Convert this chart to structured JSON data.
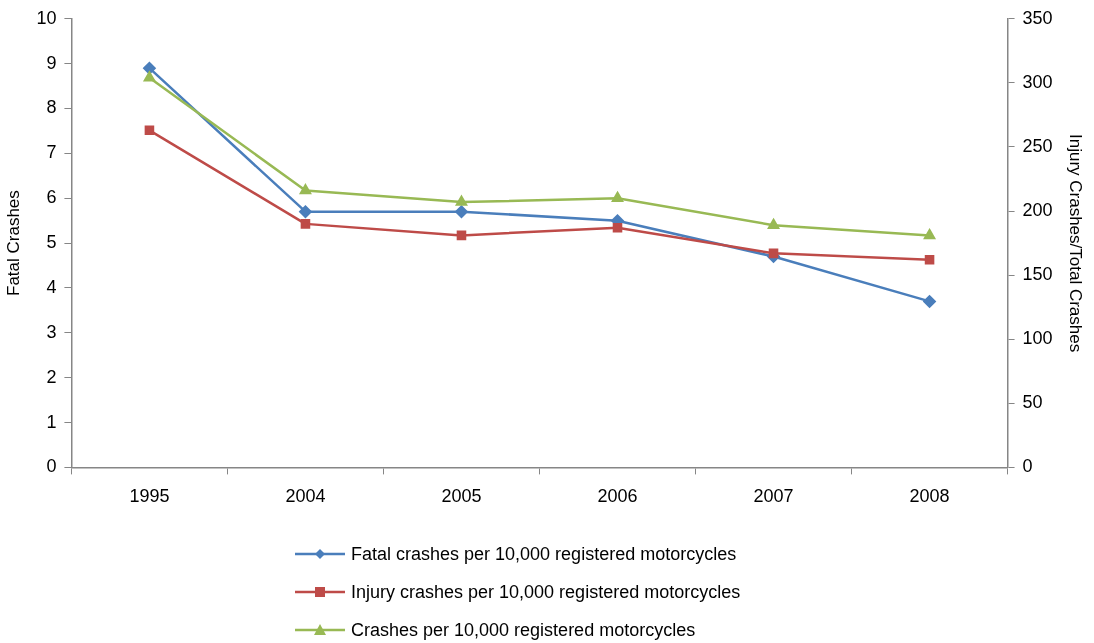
{
  "chart_data": {
    "type": "line",
    "ylabel": "Fatal Crashes",
    "y2label": "Injury Crashes/Total Crashes",
    "categories": [
      "1995",
      "2004",
      "2005",
      "2006",
      "2007",
      "2008"
    ],
    "series": [
      {
        "name": "Fatal crashes per 10,000 registered motorcycles",
        "color": "#4a7ebb",
        "marker": "diamond",
        "values": [
          8.9,
          5.7,
          5.7,
          5.5,
          4.7,
          3.7
        ]
      },
      {
        "name": "Injury crashes per 10,000 registered motorcycles",
        "color": "#be4b48",
        "marker": "square",
        "axis": "y2",
        "values": [
          263,
          190,
          181,
          187,
          167,
          162
        ]
      },
      {
        "name": "Crashes per 10,000 registered motorcycles",
        "color": "#98b954",
        "marker": "triangle",
        "axis": "y2",
        "values": [
          304,
          216,
          207,
          210,
          189,
          181
        ]
      }
    ],
    "ylim": [
      0,
      10
    ],
    "yticks": [
      0,
      1,
      2,
      3,
      4,
      5,
      6,
      7,
      8,
      9,
      10
    ],
    "y2lim": [
      0,
      350
    ],
    "y2ticks": [
      0,
      50,
      100,
      150,
      200,
      250,
      300,
      350
    ],
    "grid": false,
    "legend": "bottom",
    "line_style": "solid"
  }
}
